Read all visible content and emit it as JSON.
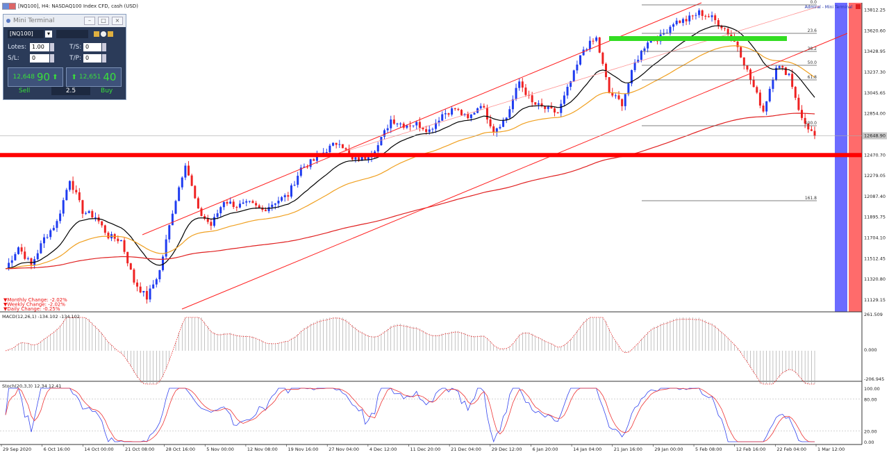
{
  "header": {
    "title": "[NQ100], H4:  NASDAQ100 Index CFD, cash (USD)",
    "mini_terminal_label": "Admiral - Mini Terminal"
  },
  "terminal": {
    "title": "Mini Terminal",
    "symbol": "[NQ100]",
    "lots_label": "Lotes:",
    "lots_value": "1.00",
    "ts_label": "T/S:",
    "ts_value": "0",
    "sl_label": "S/L:",
    "sl_value": "0",
    "tp_label": "T/P:",
    "tp_value": "0",
    "sell_small": "12,648",
    "sell_big": "90",
    "buy_small": "12,651",
    "buy_big": "40",
    "sell_label": "Sell",
    "buy_label": "Buy",
    "spread": "2.5"
  },
  "changes": {
    "monthly": "Monthly Change: -2.02%",
    "weekly": "Weekly Change: -2.02%",
    "daily": "Daily Change: -0.25%"
  },
  "macd": {
    "label": "MACD(12,26,1) -134.102 -134.102",
    "scale": [
      "261.509",
      "0.000",
      "-206.945"
    ]
  },
  "stoch": {
    "label": "Stoch(20,3,3) 12.34 12.41",
    "scale": [
      "100.00",
      "80.00",
      "20.00",
      "0.00"
    ]
  },
  "fib_levels": [
    "0.0",
    "23.6",
    "38.2",
    "50.0",
    "61.8",
    "100.0",
    "161.8"
  ],
  "current_price_label": "12648.90",
  "colors": {
    "bull": "#1f3cf0",
    "bear": "#ef2222",
    "ema_fast": "#000000",
    "ema_mid": "#f0a020",
    "ema_slow": "#e02020",
    "support": "#ff0000",
    "resistance_zone": "#33dd22"
  },
  "chart_data": {
    "type": "candlestick",
    "title": "[NQ100], H4:  NASDAQ100 Index CFD, cash (USD)",
    "x_ticks": [
      "29 Sep 2020",
      "6 Oct 16:00",
      "14 Oct 00:00",
      "21 Oct 08:00",
      "28 Oct 16:00",
      "5 Nov 00:00",
      "12 Nov 08:00",
      "19 Nov 16:00",
      "27 Nov 04:00",
      "4 Dec 12:00",
      "11 Dec 20:00",
      "21 Dec 04:00",
      "29 Dec 12:00",
      "6 Jan 20:00",
      "14 Jan 04:00",
      "21 Jan 16:00",
      "29 Jan 00:00",
      "5 Feb 08:00",
      "12 Feb 16:00",
      "22 Feb 04:00",
      "1 Mar 12:00"
    ],
    "y_ticks": [
      13812.25,
      13620.6,
      13428.95,
      13237.3,
      13045.65,
      12854.0,
      12662.35,
      12470.7,
      12279.05,
      12087.4,
      11895.75,
      11704.1,
      11512.45,
      11320.8,
      11129.15
    ],
    "ylim": [
      11020,
      13880
    ],
    "price_path": [
      [
        0,
        11420
      ],
      [
        4,
        11620
      ],
      [
        8,
        11450
      ],
      [
        12,
        11700
      ],
      [
        16,
        11850
      ],
      [
        20,
        12250
      ],
      [
        24,
        11950
      ],
      [
        28,
        11900
      ],
      [
        32,
        11720
      ],
      [
        36,
        11680
      ],
      [
        40,
        11300
      ],
      [
        44,
        11150
      ],
      [
        48,
        11400
      ],
      [
        52,
        11950
      ],
      [
        56,
        12400
      ],
      [
        60,
        11950
      ],
      [
        64,
        11820
      ],
      [
        68,
        12050
      ],
      [
        72,
        12000
      ],
      [
        76,
        12020
      ],
      [
        80,
        11960
      ],
      [
        84,
        12040
      ],
      [
        88,
        12100
      ],
      [
        92,
        12350
      ],
      [
        96,
        12420
      ],
      [
        100,
        12520
      ],
      [
        104,
        12600
      ],
      [
        108,
        12420
      ],
      [
        112,
        12450
      ],
      [
        116,
        12560
      ],
      [
        120,
        12800
      ],
      [
        124,
        12750
      ],
      [
        128,
        12760
      ],
      [
        132,
        12700
      ],
      [
        136,
        12850
      ],
      [
        140,
        12900
      ],
      [
        144,
        12800
      ],
      [
        148,
        12950
      ],
      [
        152,
        12700
      ],
      [
        156,
        12820
      ],
      [
        160,
        13150
      ],
      [
        164,
        12950
      ],
      [
        168,
        12900
      ],
      [
        172,
        12860
      ],
      [
        176,
        13150
      ],
      [
        180,
        13450
      ],
      [
        184,
        13550
      ],
      [
        188,
        13050
      ],
      [
        192,
        12950
      ],
      [
        196,
        13320
      ],
      [
        200,
        13530
      ],
      [
        204,
        13560
      ],
      [
        208,
        13700
      ],
      [
        212,
        13720
      ],
      [
        216,
        13790
      ],
      [
        220,
        13740
      ],
      [
        224,
        13640
      ],
      [
        228,
        13480
      ],
      [
        232,
        13170
      ],
      [
        236,
        12880
      ],
      [
        240,
        13300
      ],
      [
        244,
        13220
      ],
      [
        248,
        12800
      ],
      [
        252,
        12648.9
      ]
    ],
    "ema_fast_period": 20,
    "ema_mid_period": 50,
    "ema_slow_period": 200,
    "support_level": 12470.7,
    "resistance_zone": [
      13590,
      13620
    ],
    "fibonacci": {
      "levels": [
        "0.0",
        "23.6",
        "38.2",
        "50.0",
        "61.8",
        "100.0",
        "161.8"
      ],
      "high": 13880,
      "low": 12720
    },
    "macd_range": [
      -206.945,
      261.509
    ],
    "stoch_range": [
      0,
      100
    ],
    "grid": false
  }
}
